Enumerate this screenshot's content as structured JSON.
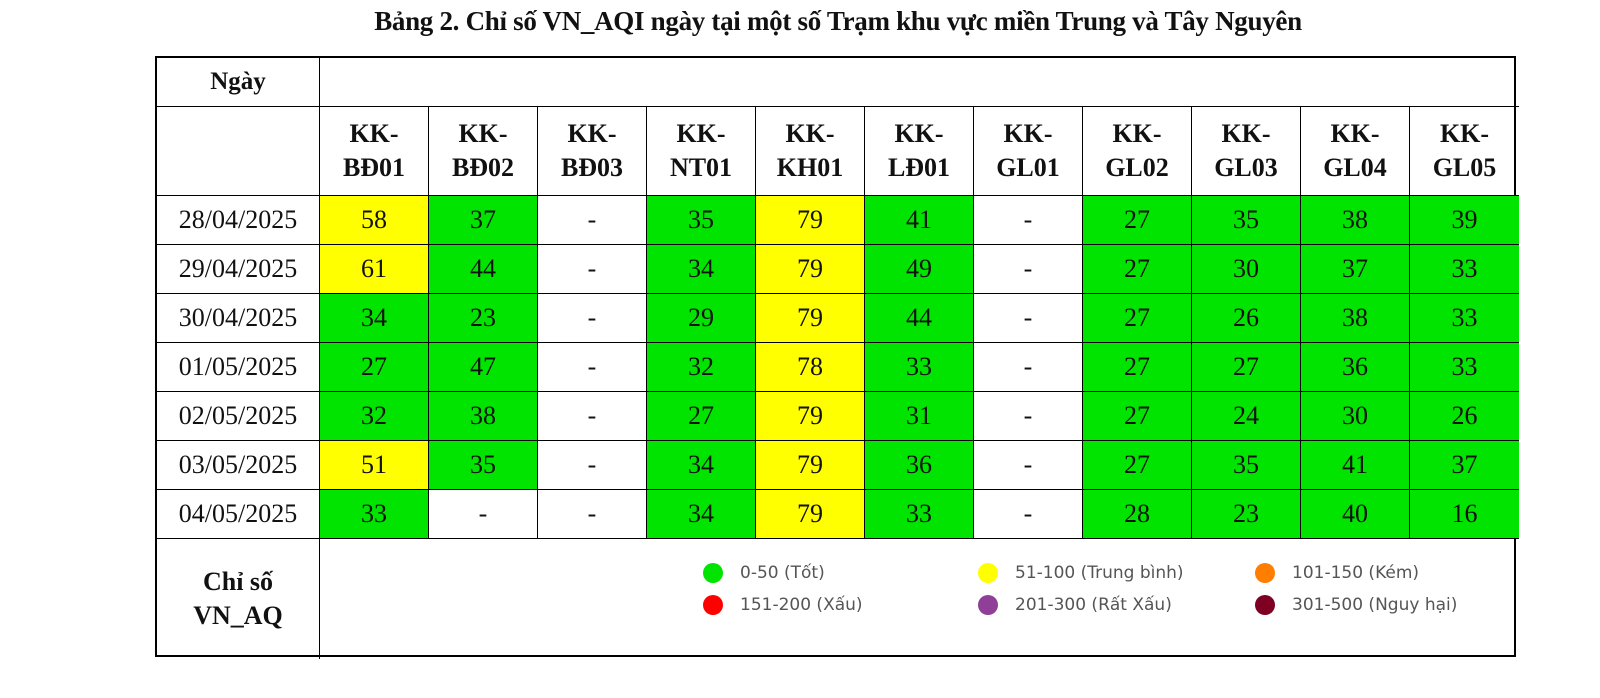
{
  "title": "Bảng 2. Chỉ số VN_AQI ngày tại một số Trạm khu vực miền Trung và Tây Nguyên",
  "header": {
    "date_label": "Ngày",
    "stations": [
      {
        "line1": "KK-",
        "line2": "BĐ01"
      },
      {
        "line1": "KK-",
        "line2": "BĐ02"
      },
      {
        "line1": "KK-",
        "line2": "BĐ03"
      },
      {
        "line1": "KK-",
        "line2": "NT01"
      },
      {
        "line1": "KK-",
        "line2": "KH01"
      },
      {
        "line1": "KK-",
        "line2": "LĐ01"
      },
      {
        "line1": "KK-",
        "line2": "GL01"
      },
      {
        "line1": "KK-",
        "line2": "GL02"
      },
      {
        "line1": "KK-",
        "line2": "GL03"
      },
      {
        "line1": "KK-",
        "line2": "GL04"
      },
      {
        "line1": "KK-",
        "line2": "GL05"
      }
    ]
  },
  "rows": [
    {
      "date": "28/04/2025",
      "values": [
        "58",
        "37",
        "-",
        "35",
        "79",
        "41",
        "-",
        "27",
        "35",
        "38",
        "39"
      ],
      "levels": [
        "y",
        "g",
        "w",
        "g",
        "y",
        "g",
        "w",
        "g",
        "g",
        "g",
        "g"
      ]
    },
    {
      "date": "29/04/2025",
      "values": [
        "61",
        "44",
        "-",
        "34",
        "79",
        "49",
        "-",
        "27",
        "30",
        "37",
        "33"
      ],
      "levels": [
        "y",
        "g",
        "w",
        "g",
        "y",
        "g",
        "w",
        "g",
        "g",
        "g",
        "g"
      ]
    },
    {
      "date": "30/04/2025",
      "values": [
        "34",
        "23",
        "-",
        "29",
        "79",
        "44",
        "-",
        "27",
        "26",
        "38",
        "33"
      ],
      "levels": [
        "g",
        "g",
        "w",
        "g",
        "y",
        "g",
        "w",
        "g",
        "g",
        "g",
        "g"
      ]
    },
    {
      "date": "01/05/2025",
      "values": [
        "27",
        "47",
        "-",
        "32",
        "78",
        "33",
        "-",
        "27",
        "27",
        "36",
        "33"
      ],
      "levels": [
        "g",
        "g",
        "w",
        "g",
        "y",
        "g",
        "w",
        "g",
        "g",
        "g",
        "g"
      ]
    },
    {
      "date": "02/05/2025",
      "values": [
        "32",
        "38",
        "-",
        "27",
        "79",
        "31",
        "-",
        "27",
        "24",
        "30",
        "26"
      ],
      "levels": [
        "g",
        "g",
        "w",
        "g",
        "y",
        "g",
        "w",
        "g",
        "g",
        "g",
        "g"
      ]
    },
    {
      "date": "03/05/2025",
      "values": [
        "51",
        "35",
        "-",
        "34",
        "79",
        "36",
        "-",
        "27",
        "35",
        "41",
        "37"
      ],
      "levels": [
        "y",
        "g",
        "w",
        "g",
        "y",
        "g",
        "w",
        "g",
        "g",
        "g",
        "g"
      ]
    },
    {
      "date": "04/05/2025",
      "values": [
        "33",
        "-",
        "-",
        "34",
        "79",
        "33",
        "-",
        "28",
        "23",
        "40",
        "16"
      ],
      "levels": [
        "g",
        "w",
        "w",
        "g",
        "y",
        "g",
        "w",
        "g",
        "g",
        "g",
        "g"
      ]
    }
  ],
  "footer": {
    "label_line1": "Chỉ số",
    "label_line2": "VN_AQ"
  },
  "legend": [
    {
      "label": "0-50 (Tốt)",
      "color": "#00e400"
    },
    {
      "label": "51-100 (Trung bình)",
      "color": "#ffff00"
    },
    {
      "label": "101-150 (Kém)",
      "color": "#ff7e00"
    },
    {
      "label": "151-200 (Xấu)",
      "color": "#ff0000"
    },
    {
      "label": "201-300 (Rất Xấu)",
      "color": "#8f3f97"
    },
    {
      "label": "301-500 (Nguy hại)",
      "color": "#7e0023"
    }
  ]
}
